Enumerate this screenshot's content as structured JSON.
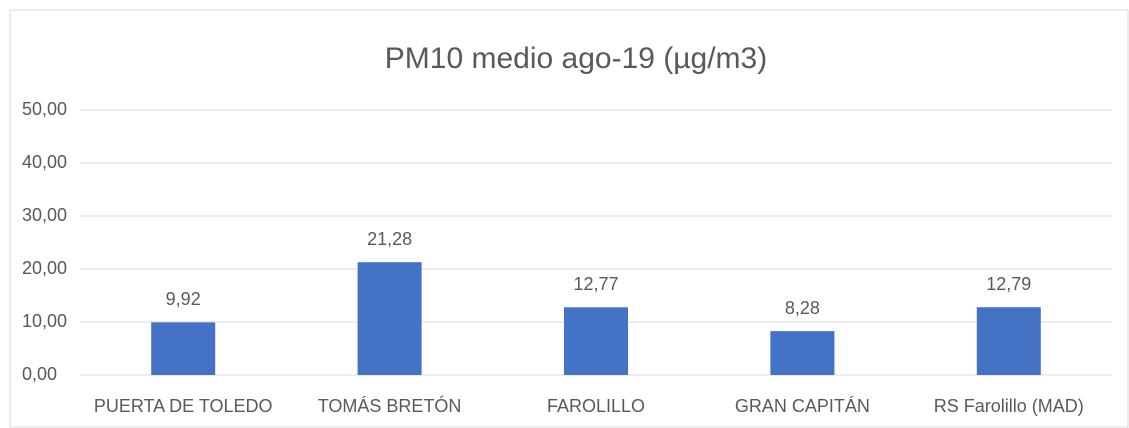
{
  "chart_data": {
    "type": "bar",
    "title": "PM10 medio ago-19 (µg/m3)",
    "categories": [
      "PUERTA DE TOLEDO",
      "TOMÁS BRETÓN",
      "FAROLILLO",
      "GRAN CAPITÁN",
      "RS Farolillo (MAD)"
    ],
    "values": [
      9.92,
      21.28,
      12.77,
      8.28,
      12.79
    ],
    "value_labels": [
      "9,92",
      "21,28",
      "12,77",
      "8,28",
      "12,79"
    ],
    "color": "#4472c4",
    "ylim": [
      0,
      50
    ],
    "yticks": [
      {
        "value": 0,
        "label": "0,00"
      },
      {
        "value": 10,
        "label": "10,00"
      },
      {
        "value": 20,
        "label": "20,00"
      },
      {
        "value": 30,
        "label": "30,00"
      },
      {
        "value": 40,
        "label": "40,00"
      },
      {
        "value": 50,
        "label": "50,00"
      }
    ],
    "grid": true
  }
}
